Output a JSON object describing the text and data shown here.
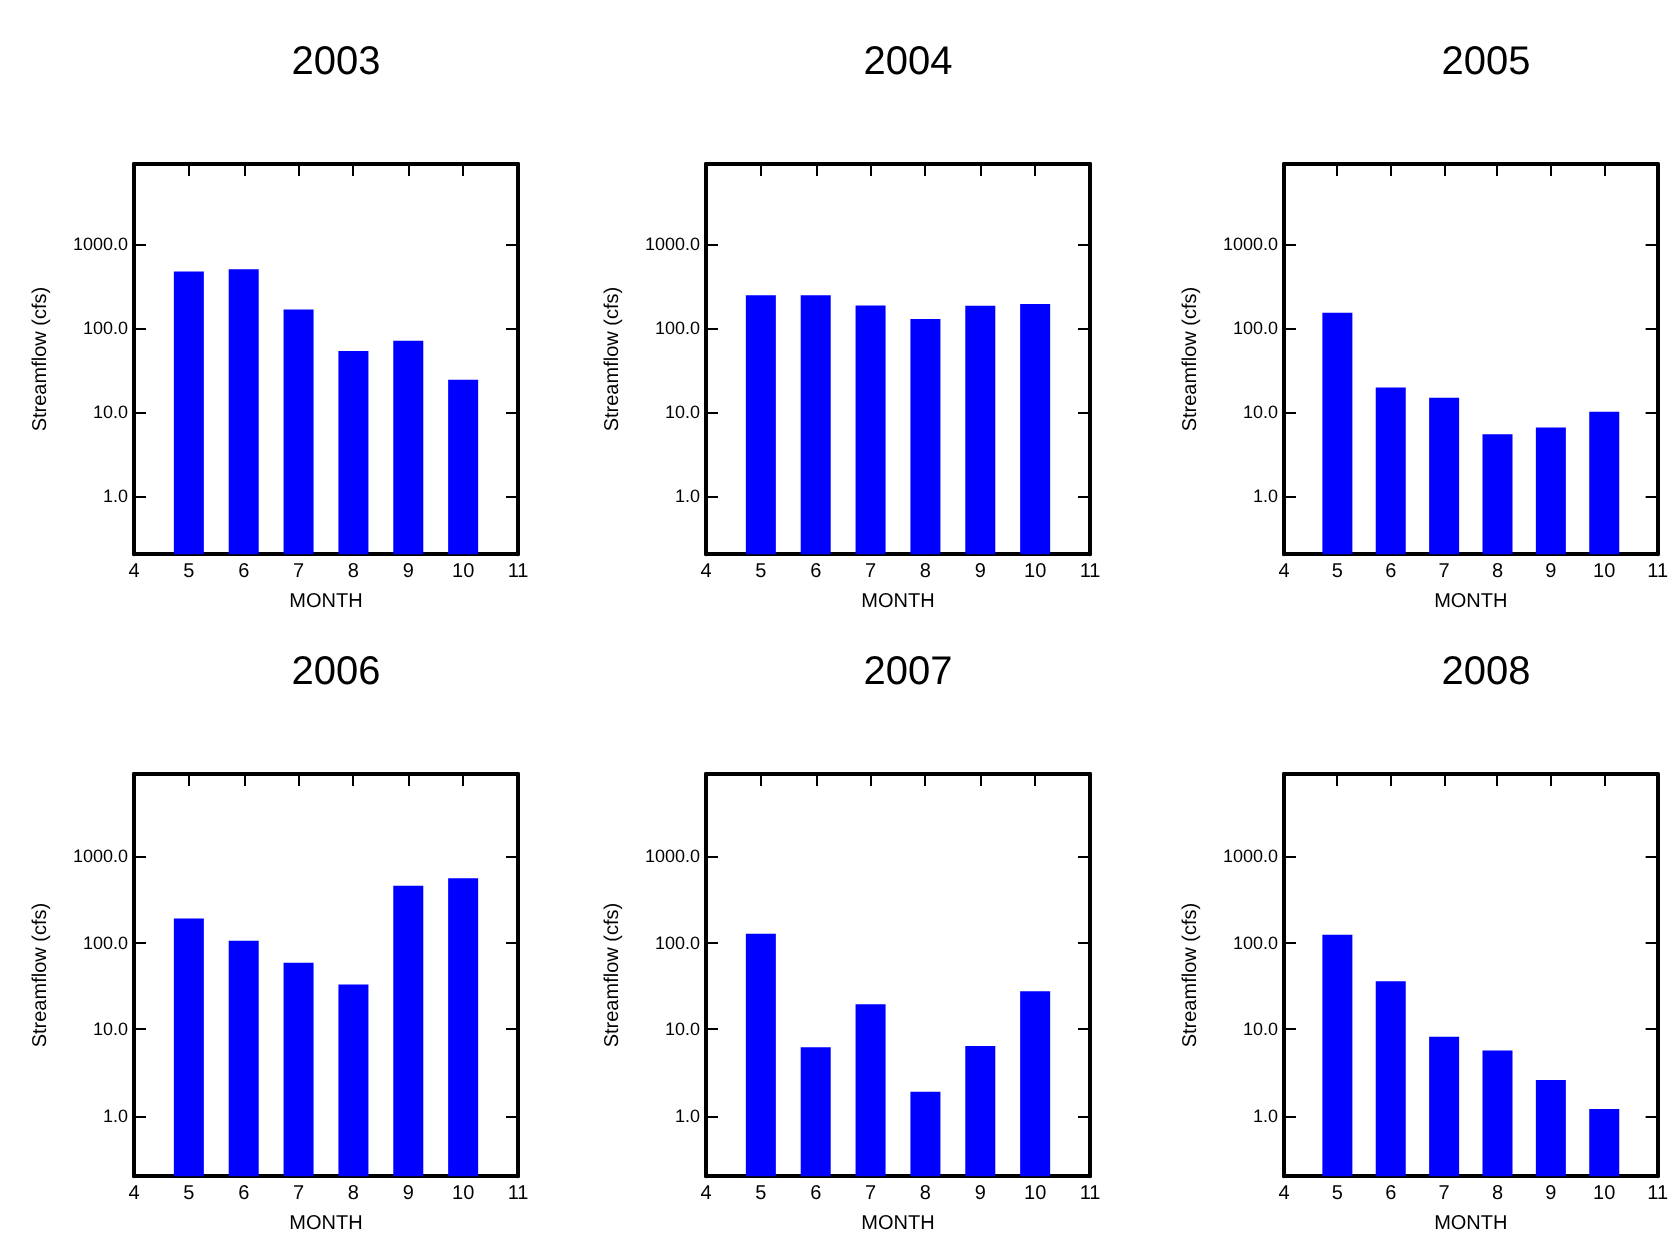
{
  "chart_data": [
    {
      "type": "bar",
      "title": "2003",
      "xlabel": "MONTH",
      "ylabel": "Streamflow (cfs)",
      "x": [
        5,
        6,
        7,
        8,
        9,
        10
      ],
      "values": [
        470,
        500,
        166,
        53,
        70,
        24
      ],
      "color": "#0000ff",
      "xlim": [
        4,
        11
      ],
      "xticks": [
        4,
        5,
        6,
        7,
        8,
        9,
        10,
        11
      ],
      "ylim": [
        0.2,
        9000
      ],
      "yticks": [
        {
          "value": 1,
          "label": "1.0"
        },
        {
          "value": 10,
          "label": "10.0"
        },
        {
          "value": 100,
          "label": "100.0"
        },
        {
          "value": 1000,
          "label": "1000.0"
        }
      ],
      "log": true,
      "grid": false
    },
    {
      "type": "bar",
      "title": "2004",
      "xlabel": "MONTH",
      "ylabel": "Streamflow (cfs)",
      "x": [
        5,
        6,
        7,
        8,
        9,
        10
      ],
      "values": [
        245,
        245,
        185,
        128,
        183,
        192
      ],
      "color": "#0000ff",
      "xlim": [
        4,
        11
      ],
      "xticks": [
        4,
        5,
        6,
        7,
        8,
        9,
        10,
        11
      ],
      "ylim": [
        0.2,
        9000
      ],
      "yticks": [
        {
          "value": 1,
          "label": "1.0"
        },
        {
          "value": 10,
          "label": "10.0"
        },
        {
          "value": 100,
          "label": "100.0"
        },
        {
          "value": 1000,
          "label": "1000.0"
        }
      ],
      "log": true,
      "grid": false
    },
    {
      "type": "bar",
      "title": "2005",
      "xlabel": "MONTH",
      "ylabel": "Streamflow (cfs)",
      "x": [
        5,
        6,
        7,
        8,
        9,
        10
      ],
      "values": [
        152,
        19.5,
        14.7,
        5.4,
        6.5,
        10
      ],
      "color": "#0000ff",
      "xlim": [
        4,
        11
      ],
      "xticks": [
        4,
        5,
        6,
        7,
        8,
        9,
        10,
        11
      ],
      "ylim": [
        0.2,
        9000
      ],
      "yticks": [
        {
          "value": 1,
          "label": "1.0"
        },
        {
          "value": 10,
          "label": "10.0"
        },
        {
          "value": 100,
          "label": "100.0"
        },
        {
          "value": 1000,
          "label": "1000.0"
        }
      ],
      "log": true,
      "grid": false
    },
    {
      "type": "bar",
      "title": "2006",
      "xlabel": "MONTH",
      "ylabel": "Streamflow (cfs)",
      "x": [
        5,
        6,
        7,
        8,
        9,
        10
      ],
      "values": [
        191,
        106,
        59,
        33,
        460,
        560
      ],
      "color": "#0000ff",
      "xlim": [
        4,
        11
      ],
      "xticks": [
        4,
        5,
        6,
        7,
        8,
        9,
        10,
        11
      ],
      "ylim": [
        0.2,
        9000
      ],
      "yticks": [
        {
          "value": 1,
          "label": "1.0"
        },
        {
          "value": 10,
          "label": "10.0"
        },
        {
          "value": 100,
          "label": "100.0"
        },
        {
          "value": 1000,
          "label": "1000.0"
        }
      ],
      "log": true,
      "grid": false
    },
    {
      "type": "bar",
      "title": "2007",
      "xlabel": "MONTH",
      "ylabel": "Streamflow (cfs)",
      "x": [
        5,
        6,
        7,
        8,
        9,
        10
      ],
      "values": [
        128,
        6.2,
        19.5,
        1.9,
        6.4,
        27.6
      ],
      "color": "#0000ff",
      "xlim": [
        4,
        11
      ],
      "xticks": [
        4,
        5,
        6,
        7,
        8,
        9,
        10,
        11
      ],
      "ylim": [
        0.2,
        9000
      ],
      "yticks": [
        {
          "value": 1,
          "label": "1.0"
        },
        {
          "value": 10,
          "label": "10.0"
        },
        {
          "value": 100,
          "label": "100.0"
        },
        {
          "value": 1000,
          "label": "1000.0"
        }
      ],
      "log": true,
      "grid": false
    },
    {
      "type": "bar",
      "title": "2008",
      "xlabel": "MONTH",
      "ylabel": "Streamflow (cfs)",
      "x": [
        5,
        6,
        7,
        8,
        9,
        10
      ],
      "values": [
        124,
        36,
        8.2,
        5.7,
        2.6,
        1.2
      ],
      "color": "#0000ff",
      "xlim": [
        4,
        11
      ],
      "xticks": [
        4,
        5,
        6,
        7,
        8,
        9,
        10,
        11
      ],
      "ylim": [
        0.2,
        9000
      ],
      "yticks": [
        {
          "value": 1,
          "label": "1.0"
        },
        {
          "value": 10,
          "label": "10.0"
        },
        {
          "value": 100,
          "label": "100.0"
        },
        {
          "value": 1000,
          "label": "1000.0"
        }
      ],
      "log": true,
      "grid": false
    }
  ]
}
